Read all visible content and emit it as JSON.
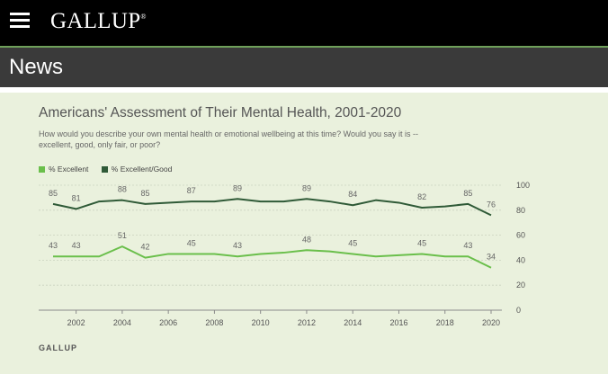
{
  "header": {
    "brand": "GALLUP",
    "trademark": "®"
  },
  "section": {
    "title": "News"
  },
  "chart_data": {
    "type": "line",
    "title": "Americans' Assessment of Their Mental Health, 2001-2020",
    "subtitle": "How would you describe your own mental health or emotional wellbeing at this time? Would you say it is -- excellent, good, only fair, or poor?",
    "x": [
      2001,
      2002,
      2003,
      2004,
      2005,
      2006,
      2007,
      2008,
      2009,
      2010,
      2011,
      2012,
      2013,
      2014,
      2015,
      2016,
      2017,
      2018,
      2019,
      2020
    ],
    "x_ticks": [
      2002,
      2004,
      2006,
      2008,
      2010,
      2012,
      2014,
      2016,
      2018,
      2020
    ],
    "y_ticks": [
      0,
      20,
      40,
      60,
      80,
      100
    ],
    "ylim": [
      0,
      100
    ],
    "series": [
      {
        "name": "% Excellent",
        "color": "#6abf4b",
        "values": [
          43,
          43,
          43,
          51,
          42,
          45,
          45,
          45,
          43,
          45,
          46,
          48,
          47,
          45,
          43,
          44,
          45,
          43,
          43,
          34
        ]
      },
      {
        "name": "% Excellent/Good",
        "color": "#2f5a37",
        "values": [
          85,
          81,
          87,
          88,
          85,
          86,
          87,
          87,
          89,
          87,
          87,
          89,
          87,
          84,
          88,
          86,
          82,
          83,
          85,
          76
        ]
      }
    ],
    "labels": {
      "excellent": [
        [
          2001,
          "43"
        ],
        [
          2002,
          "43"
        ],
        [
          2004,
          "51"
        ],
        [
          2005,
          "42"
        ],
        [
          2007,
          "45"
        ],
        [
          2009,
          "43"
        ],
        [
          2012,
          "48"
        ],
        [
          2014,
          "45"
        ],
        [
          2017,
          "45"
        ],
        [
          2019,
          "43"
        ],
        [
          2020,
          "34"
        ]
      ],
      "excellent_good": [
        [
          2001,
          "85"
        ],
        [
          2002,
          "81"
        ],
        [
          2004,
          "88"
        ],
        [
          2005,
          "85"
        ],
        [
          2007,
          "87"
        ],
        [
          2009,
          "89"
        ],
        [
          2012,
          "89"
        ],
        [
          2014,
          "84"
        ],
        [
          2017,
          "82"
        ],
        [
          2019,
          "85"
        ],
        [
          2020,
          "76"
        ]
      ]
    },
    "grid": true,
    "legend": "top-left",
    "source": "GALLUP"
  }
}
